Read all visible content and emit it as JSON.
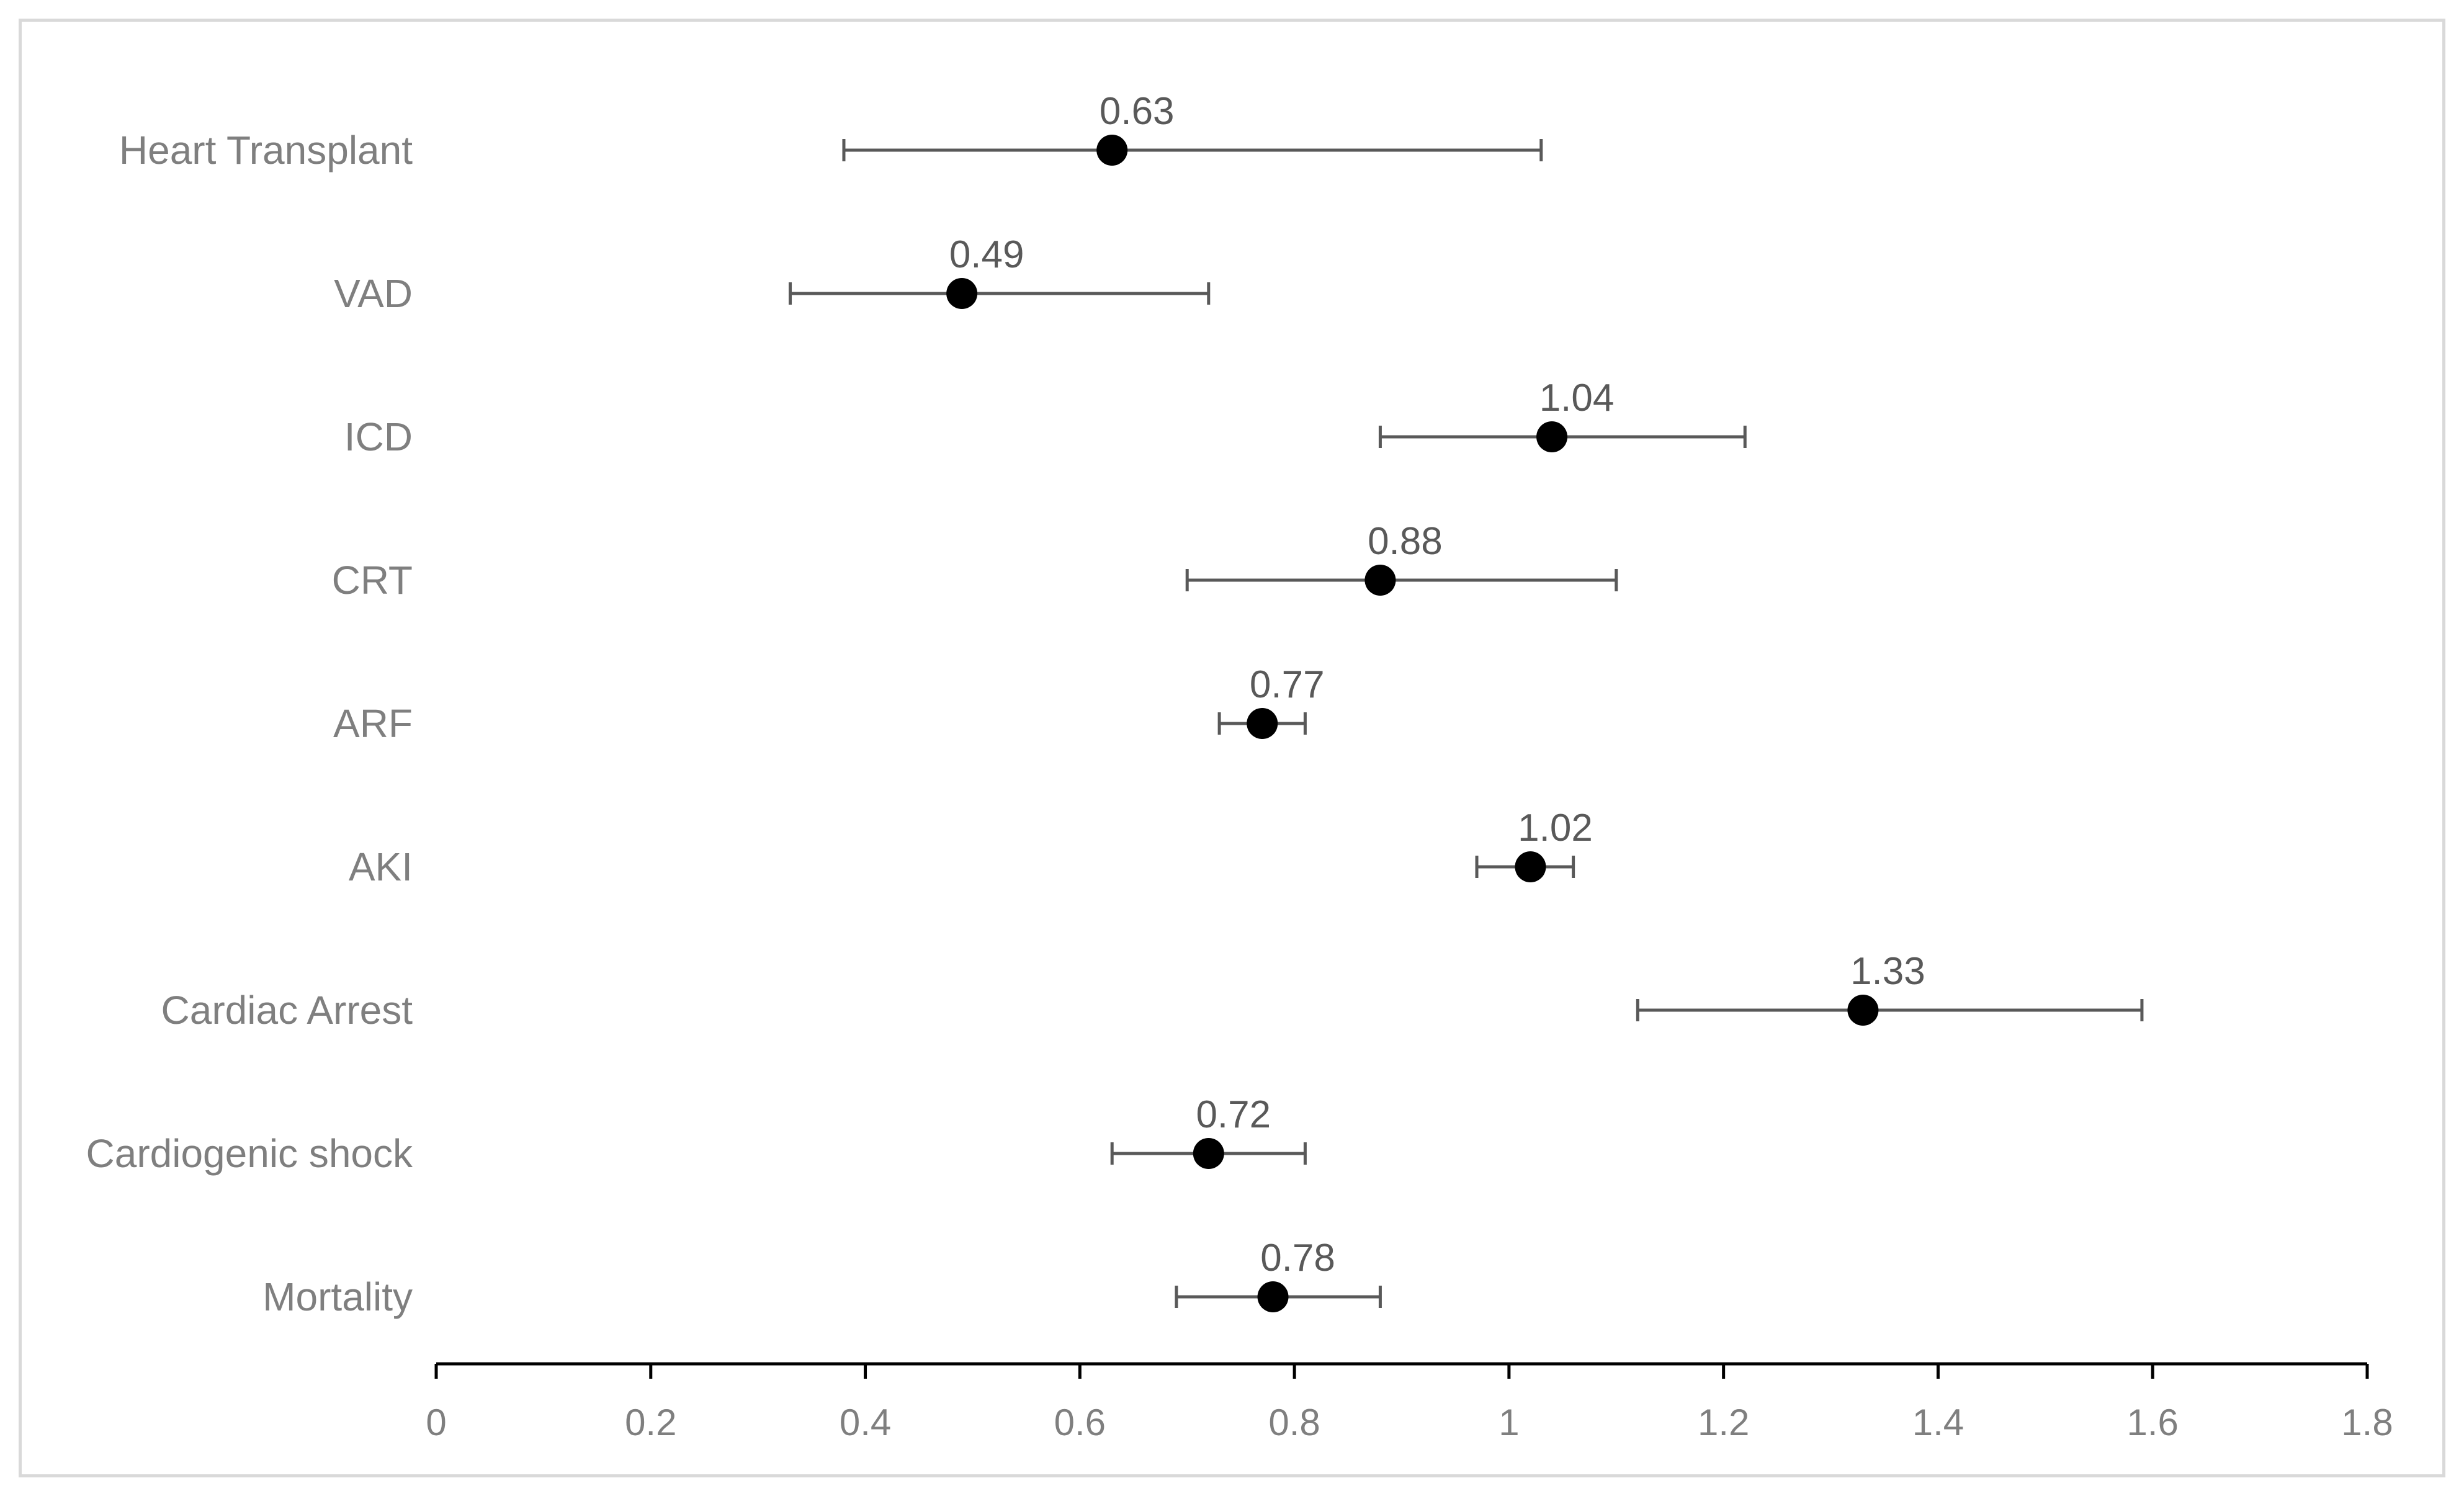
{
  "chart_data": {
    "type": "scatter",
    "title": "",
    "xlabel": "",
    "ylabel": "",
    "xlim": [
      0,
      1.8
    ],
    "x_ticks": [
      "0",
      "0.2",
      "0.4",
      "0.6",
      "0.8",
      "1",
      "1.2",
      "1.4",
      "1.6",
      "1.8"
    ],
    "grid": false,
    "legend": "none",
    "colors": {
      "marker": "#000000",
      "error_bar": "#595959",
      "axis": "#000000",
      "category_text": "#7f7f7f",
      "tick_text": "#7f7f7f",
      "data_label_text": "#595959",
      "frame": "#d9d9d9"
    },
    "categories": [
      "Heart Transplant",
      "VAD",
      "ICD",
      "CRT",
      "ARF",
      "AKI",
      "Cardiac Arrest",
      "Cardiogenic shock",
      "Mortality"
    ],
    "values": [
      0.63,
      0.49,
      1.04,
      0.88,
      0.77,
      1.02,
      1.33,
      0.72,
      0.78
    ],
    "lower": [
      0.38,
      0.33,
      0.88,
      0.7,
      0.73,
      0.97,
      1.12,
      0.63,
      0.69
    ],
    "upper": [
      1.03,
      0.72,
      1.22,
      1.1,
      0.81,
      1.06,
      1.59,
      0.81,
      0.88
    ],
    "data_labels": [
      "0.63",
      "0.49",
      "1.04",
      "0.88",
      "0.77",
      "1.02",
      "1.33",
      "0.72",
      "0.78"
    ]
  }
}
